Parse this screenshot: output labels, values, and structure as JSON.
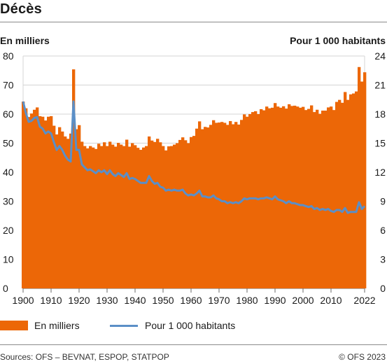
{
  "header": {
    "title": "Décès"
  },
  "axes": {
    "left_unit": "En milliers",
    "right_unit": "Pour 1 000 habitants"
  },
  "legend": {
    "series1": "En milliers",
    "series2": "Pour 1 000 habitants"
  },
  "footer": {
    "source": "Sources: OFS – BEVNAT, ESPOP, STATPOP",
    "copyright": "© OFS 2023"
  },
  "colors": {
    "bars": "#ec6707",
    "line": "#5b8fc7"
  },
  "chart_data": {
    "type": "bar",
    "xlim": [
      1900,
      2022
    ],
    "x_ticks": [
      "1900",
      "1910",
      "1920",
      "1930",
      "1940",
      "1950",
      "1960",
      "1970",
      "1980",
      "1990",
      "2000",
      "2010",
      "2022"
    ],
    "x_tick_values": [
      1900,
      1910,
      1920,
      1930,
      1940,
      1950,
      1960,
      1970,
      1980,
      1990,
      2000,
      2010,
      2022
    ],
    "ylim_left": [
      0,
      80
    ],
    "y_ticks_left": [
      "0",
      "10",
      "20",
      "30",
      "40",
      "50",
      "60",
      "70",
      "80"
    ],
    "ylim_right": [
      0,
      24
    ],
    "y_ticks_right": [
      "0",
      "3",
      "6",
      "9",
      "12",
      "15",
      "18",
      "21",
      "24"
    ],
    "series": [
      {
        "name": "En milliers",
        "type": "bar",
        "axis": "left",
        "start_year": 1900,
        "values": [
          64.3,
          62.0,
          59.0,
          60.2,
          61.5,
          62.3,
          59.3,
          59.1,
          57.8,
          59.1,
          59.3,
          56.0,
          53.0,
          55.5,
          54.0,
          52.3,
          51.5,
          53.3,
          75.4,
          54.8,
          56.2,
          50.5,
          49.0,
          48.2,
          49.0,
          48.5,
          48.0,
          49.8,
          49.0,
          50.3,
          49.0,
          50.5,
          49.5,
          48.8,
          50.1,
          49.5,
          49.0,
          51.2,
          48.8,
          50.0,
          49.3,
          48.4,
          47.7,
          48.5,
          49.0,
          52.3,
          50.9,
          50.4,
          51.5,
          50.3,
          49.0,
          47.5,
          48.9,
          49.0,
          49.5,
          50.0,
          51.1,
          52.0,
          51.0,
          50.0,
          52.1,
          52.5,
          55.0,
          57.5,
          54.8,
          55.6,
          55.4,
          56.3,
          57.9,
          57.0,
          57.1,
          57.3,
          57.0,
          56.3,
          57.6,
          56.5,
          57.3,
          56.4,
          58.0,
          59.9,
          59.1,
          60.0,
          60.7,
          61.0,
          60.0,
          61.7,
          61.3,
          62.6,
          62.0,
          62.2,
          63.8,
          62.6,
          62.2,
          62.7,
          61.9,
          63.4,
          62.8,
          62.9,
          62.6,
          62.2,
          62.5,
          61.4,
          61.8,
          63.0,
          60.7,
          61.5,
          60.1,
          61.2,
          61.2,
          62.3,
          62.6,
          61.4,
          64.2,
          64.9,
          63.9,
          67.6,
          64.9,
          66.8,
          67.1,
          67.8,
          76.2,
          71.2,
          74.4
        ]
      },
      {
        "name": "Pour 1 000 habitants",
        "type": "line",
        "axis": "right",
        "start_year": 1900,
        "values": [
          19.3,
          18.1,
          17.2,
          17.3,
          17.6,
          17.7,
          16.7,
          16.5,
          16.0,
          16.2,
          16.0,
          15.1,
          14.3,
          14.7,
          14.3,
          13.7,
          13.3,
          13.1,
          19.3,
          14.3,
          14.3,
          12.8,
          12.5,
          12.2,
          12.3,
          12.1,
          11.9,
          12.2,
          12.0,
          12.2,
          11.8,
          12.2,
          11.8,
          11.6,
          11.9,
          11.7,
          11.5,
          11.9,
          11.3,
          11.4,
          11.3,
          11.1,
          10.9,
          10.9,
          10.9,
          11.6,
          11.1,
          10.8,
          10.9,
          10.5,
          10.4,
          10.1,
          10.2,
          10.1,
          10.2,
          10.1,
          10.1,
          10.2,
          9.8,
          9.6,
          9.7,
          9.6,
          9.8,
          10.1,
          9.5,
          9.5,
          9.4,
          9.4,
          9.6,
          9.3,
          9.2,
          9.0,
          9.0,
          8.8,
          8.9,
          8.8,
          8.9,
          8.8,
          9.0,
          9.3,
          9.2,
          9.3,
          9.3,
          9.3,
          9.2,
          9.3,
          9.3,
          9.4,
          9.3,
          9.2,
          9.5,
          9.2,
          9.1,
          9.0,
          8.8,
          9.0,
          8.8,
          8.8,
          8.7,
          8.6,
          8.6,
          8.5,
          8.4,
          8.5,
          8.2,
          8.3,
          8.1,
          8.2,
          8.1,
          8.2,
          8.0,
          7.9,
          8.1,
          8.1,
          7.9,
          8.3,
          7.8,
          7.9,
          7.9,
          7.9,
          8.9,
          8.2,
          8.5
        ]
      }
    ],
    "grid": true,
    "legend_position": "bottom"
  }
}
